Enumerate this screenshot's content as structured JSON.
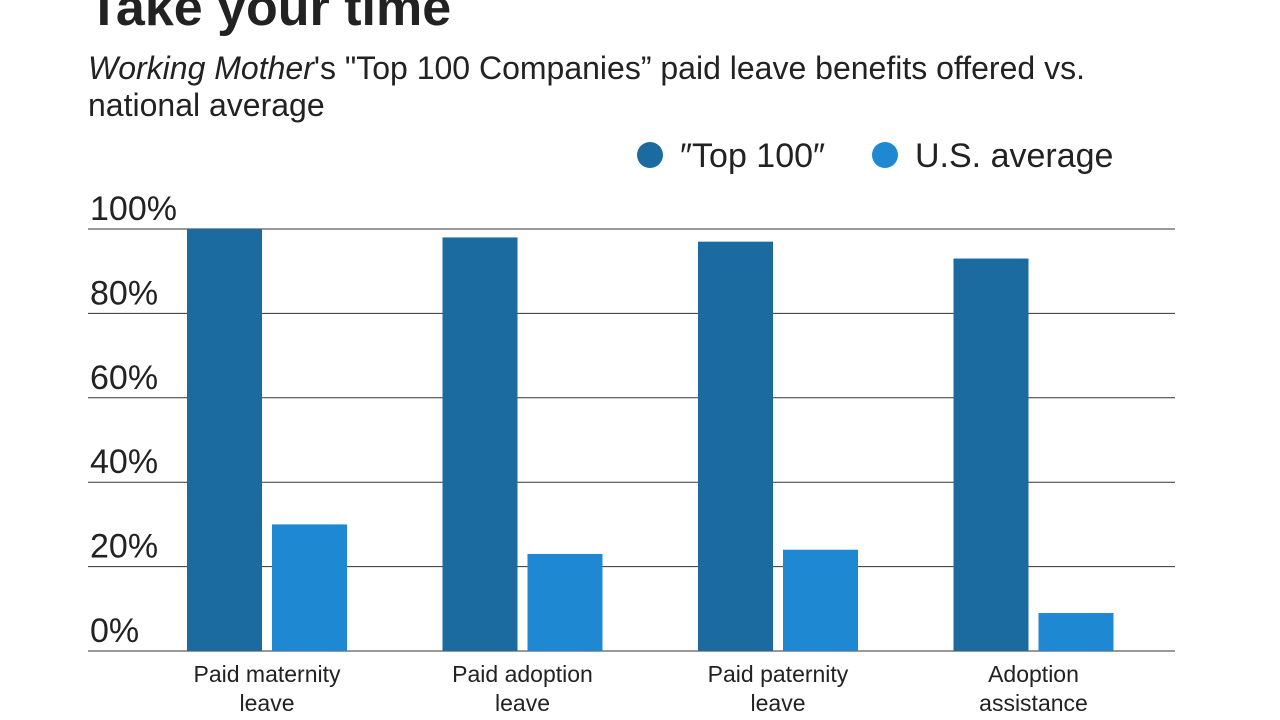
{
  "chart_data": {
    "type": "bar",
    "title": "Take your time",
    "subtitle": [
      "Working Mother",
      "'s \"Top 100 Companies” paid leave benefits offered vs. national average"
    ],
    "categories": [
      "Paid maternity leave",
      "Paid adoption leave",
      "Paid paternity leave",
      "Adoption assistance"
    ],
    "series": [
      {
        "name": "″Top 100″",
        "color": "#1b6aa0",
        "values": [
          100,
          98,
          97,
          93
        ]
      },
      {
        "name": "U.S. average",
        "color": "#1e88d3",
        "values": [
          30,
          23,
          24,
          9
        ]
      }
    ],
    "ylim": [
      0,
      100
    ],
    "yticks": [
      {
        "value": 0,
        "label": "0%"
      },
      {
        "value": 20,
        "label": "20%"
      },
      {
        "value": 40,
        "label": "40%"
      },
      {
        "value": 60,
        "label": "60%"
      },
      {
        "value": 80,
        "label": "80%"
      },
      {
        "value": 100,
        "label": "100%"
      }
    ],
    "grid": true,
    "legend": "top-right"
  }
}
